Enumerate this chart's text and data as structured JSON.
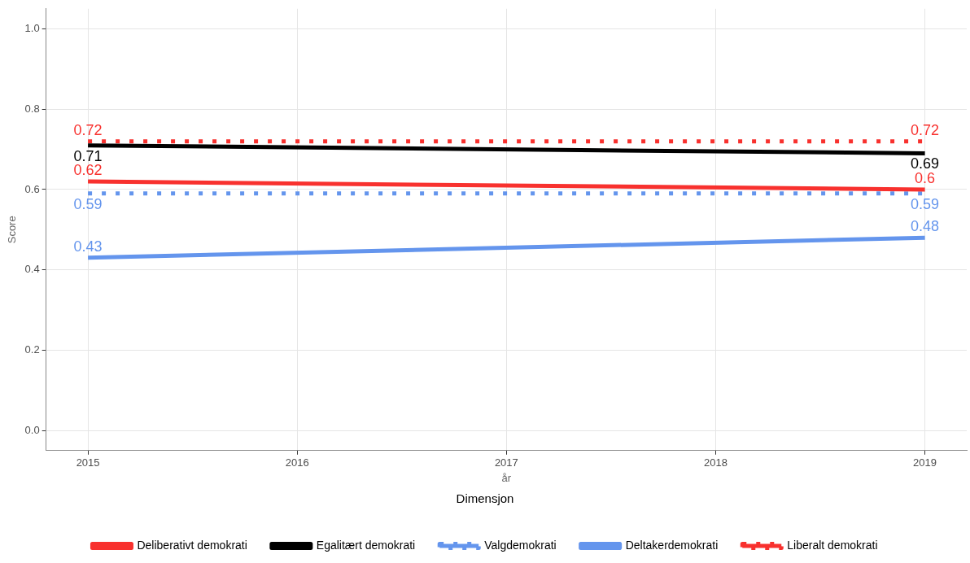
{
  "chart_data": {
    "type": "line",
    "xlabel": "år",
    "ylabel": "Score",
    "legend_title": "Dimensjon",
    "legend": "bottom",
    "grid": true,
    "data_labels": true,
    "marker": "none",
    "x": [
      2015,
      2019
    ],
    "xlim": [
      2014.8,
      2019.2
    ],
    "xticks": [
      2015,
      2016,
      2017,
      2018,
      2019
    ],
    "ylim": [
      -0.05,
      1.05
    ],
    "yticks": [
      {
        "value": 0,
        "label": "0.0"
      },
      0.2,
      0.4,
      0.6,
      0.8,
      {
        "value": 1,
        "label": "1.0"
      }
    ],
    "series": [
      {
        "name": "Deliberativt demokrati",
        "color": "#f8312e",
        "line_style": "solid",
        "values": [
          0.62,
          0.6
        ]
      },
      {
        "name": "Egalitært demokrati",
        "color": "#000000",
        "line_style": "solid",
        "values": [
          0.71,
          0.69
        ]
      },
      {
        "name": "Valgdemokrati",
        "color": "#6495ed",
        "line_style": "dotted",
        "values": [
          0.59,
          0.59
        ]
      },
      {
        "name": "Deltakerdemokrati",
        "color": "#6495ed",
        "line_style": "solid",
        "values": [
          0.43,
          0.48
        ]
      },
      {
        "name": "Liberalt demokrati",
        "color": "#f8312e",
        "line_style": "dotted",
        "values": [
          0.72,
          0.72
        ]
      }
    ]
  }
}
